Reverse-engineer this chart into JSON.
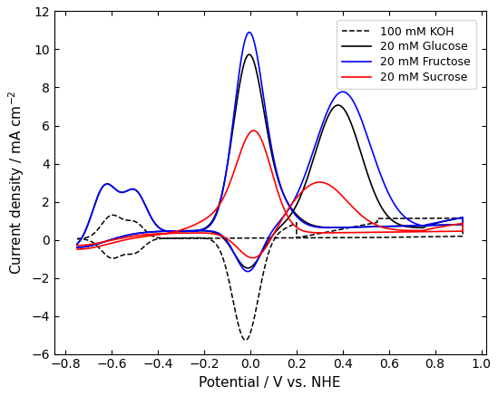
{
  "xlabel": "Potential / V vs. NHE",
  "ylabel": "Current density / mA cm$^{-2}$",
  "xlim": [
    -0.85,
    1.02
  ],
  "ylim": [
    -6,
    12
  ],
  "xticks": [
    -0.8,
    -0.6,
    -0.4,
    -0.2,
    0.0,
    0.2,
    0.4,
    0.6,
    0.8,
    1.0
  ],
  "yticks": [
    -6,
    -4,
    -2,
    0,
    2,
    4,
    6,
    8,
    10,
    12
  ],
  "legend_labels": [
    "100 mM KOH",
    "20 mM Glucose",
    "20 mM Fructose",
    "20 mM Sucrose"
  ],
  "legend_colors": [
    "black",
    "black",
    "blue",
    "red"
  ],
  "legend_styles": [
    "--",
    "-",
    "-",
    "-"
  ],
  "figsize": [
    5.49,
    4.37
  ],
  "dpi": 100
}
